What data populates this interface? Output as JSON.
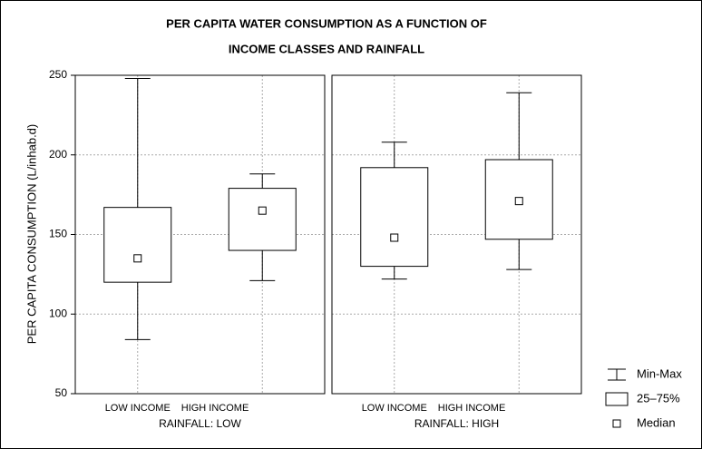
{
  "chart_data": {
    "type": "box",
    "title": [
      "PER CAPITA WATER CONSUMPTION AS A FUNCTION OF",
      "INCOME CLASSES AND RAINFALL"
    ],
    "ylabel": "PER CAPITA CONSUMPTION (L/inhab.d)",
    "ylim": [
      50,
      250
    ],
    "yticks": [
      50,
      100,
      150,
      200,
      250
    ],
    "grid": true,
    "legend": [
      "Min-Max",
      "25–75%",
      "Median"
    ],
    "legend_position": "lower right",
    "panels": [
      {
        "label": "RAINFALL: LOW",
        "categories": [
          "LOW INCOME",
          "HIGH INCOME"
        ],
        "min": [
          84,
          121
        ],
        "q1": [
          120,
          140
        ],
        "median": [
          135,
          165
        ],
        "q3": [
          167,
          179
        ],
        "max": [
          248,
          188
        ]
      },
      {
        "label": "RAINFALL: HIGH",
        "categories": [
          "LOW INCOME",
          "HIGH INCOME"
        ],
        "min": [
          122,
          128
        ],
        "q1": [
          130,
          147
        ],
        "median": [
          148,
          171
        ],
        "q3": [
          192,
          197
        ],
        "max": [
          208,
          239
        ]
      }
    ]
  }
}
